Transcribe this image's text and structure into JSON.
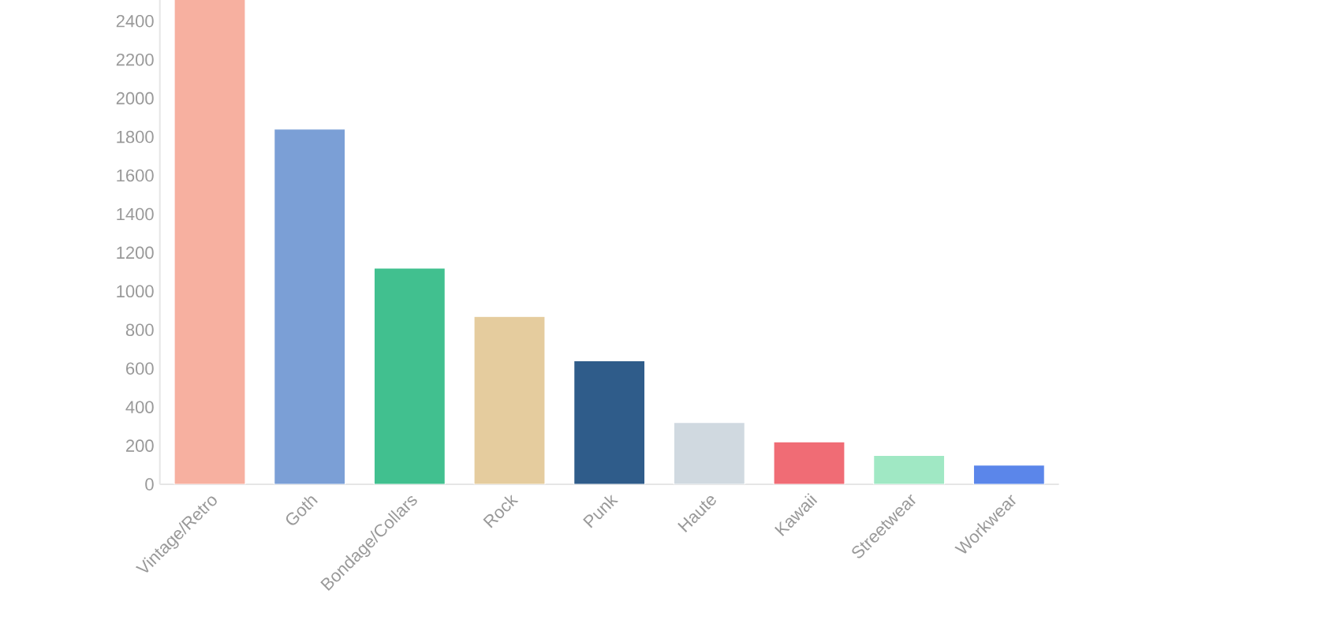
{
  "chart_data": {
    "type": "bar",
    "categories": [
      "Vintage/Retro",
      "Goth",
      "Bondage/Collars",
      "Rock",
      "Punk",
      "Haute",
      "Kawaii",
      "Streetwear",
      "Workwear"
    ],
    "values": [
      2530,
      1840,
      1120,
      870,
      640,
      320,
      220,
      150,
      100
    ],
    "colors": [
      "#f7b0a0",
      "#7b9fd6",
      "#41c08f",
      "#e5cc9e",
      "#2f5c8a",
      "#d0d9e0",
      "#f06c75",
      "#a0e8c4",
      "#5b86ea"
    ],
    "ylim": [
      0,
      2550
    ],
    "yticks": [
      0,
      200,
      400,
      600,
      800,
      1000,
      1200,
      1400,
      1600,
      1800,
      2000,
      2200,
      2400
    ],
    "grid": false
  }
}
